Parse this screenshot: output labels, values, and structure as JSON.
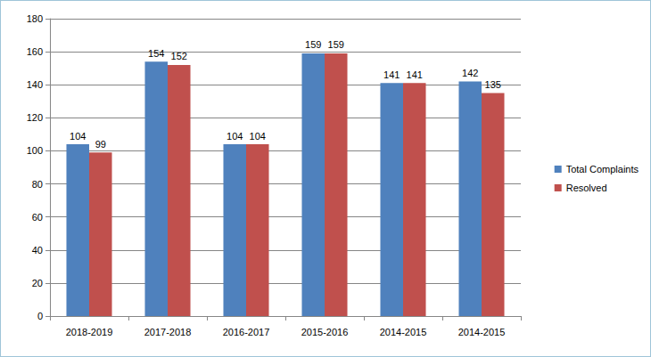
{
  "chart_data": {
    "type": "bar",
    "categories": [
      "2018-2019",
      "2017-2018",
      "2016-2017",
      "2015-2016",
      "2014-2015",
      "2014-2015"
    ],
    "series": [
      {
        "name": "Total Complaints",
        "color": "#4f81bd",
        "values": [
          104,
          154,
          104,
          159,
          141,
          142
        ]
      },
      {
        "name": "Resolved",
        "color": "#c0504d",
        "values": [
          99,
          152,
          104,
          159,
          141,
          135
        ]
      }
    ],
    "ylim": [
      0,
      180
    ],
    "yticks": [
      0,
      20,
      40,
      60,
      80,
      100,
      120,
      140,
      160,
      180
    ],
    "grid": true,
    "legend": "right",
    "data_labels": true
  }
}
